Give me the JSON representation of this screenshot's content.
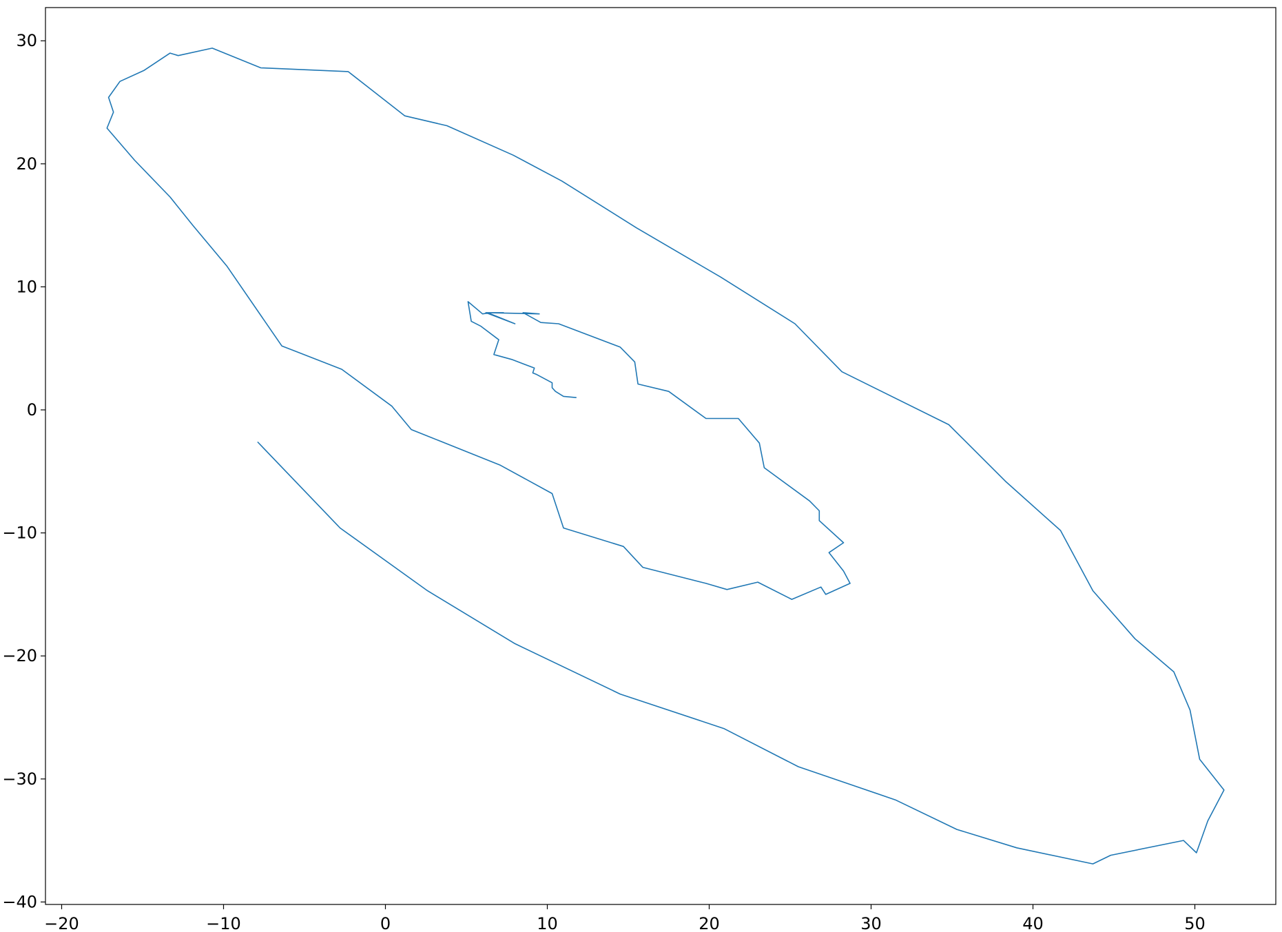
{
  "chart_data": {
    "type": "line",
    "title": "",
    "xlabel": "",
    "ylabel": "",
    "xlim": [
      -21,
      55
    ],
    "ylim": [
      -40.2,
      32.7
    ],
    "grid": false,
    "legend": "none",
    "xticks": [
      -20,
      -10,
      0,
      10,
      20,
      30,
      40,
      50
    ],
    "yticks": [
      30,
      20,
      10,
      0,
      -10,
      -20,
      -30,
      -40
    ],
    "xtick_labels": [
      "−20",
      "−10",
      "0",
      "10",
      "20",
      "30",
      "40",
      "50"
    ],
    "ytick_labels": [
      "30",
      "20",
      "10",
      "0",
      "−10",
      "−20",
      "−30",
      "−40"
    ],
    "series": [
      {
        "name": "trajectory",
        "color": "#1f77b4",
        "x": [
          11.8,
          11.0,
          10.5,
          10.3,
          10.3,
          9.3,
          9.1,
          9.2,
          7.8,
          6.7,
          7.0,
          5.9,
          5.3,
          5.1,
          6.0,
          6.5,
          7.3,
          6.2,
          8.0,
          6.3,
          9.5,
          8.5,
          9.6,
          10.7,
          14.5,
          15.4,
          15.6,
          17.5,
          19.8,
          21.8,
          23.1,
          23.4,
          26.2,
          26.8,
          26.8,
          28.3,
          27.4,
          28.3,
          28.7,
          27.2,
          26.9,
          25.1,
          23.0,
          21.1,
          19.8,
          15.9,
          14.7,
          11.0,
          10.3,
          7.1,
          1.6,
          0.4,
          -2.7,
          -6.4,
          -9.8,
          -11.9,
          -13.3,
          -15.5,
          -17.2,
          -16.8,
          -17.1,
          -16.4,
          -14.9,
          -13.3,
          -12.8,
          -10.7,
          -7.7,
          -2.3,
          1.2,
          3.8,
          7.9,
          10.9,
          15.5,
          20.7,
          25.3,
          28.2,
          34.8,
          38.3,
          41.7,
          43.7,
          46.3,
          48.7,
          49.7,
          50.3,
          51.8,
          50.8,
          50.1,
          49.3,
          44.8,
          43.7,
          39.0,
          35.3,
          31.5,
          25.5,
          20.9,
          14.5,
          8.0,
          2.6,
          -2.8,
          -7.9
        ],
        "y": [
          1.0,
          1.1,
          1.5,
          1.8,
          2.2,
          2.9,
          3.0,
          3.4,
          4.1,
          4.5,
          5.7,
          6.8,
          7.2,
          8.8,
          7.8,
          7.9,
          7.9,
          7.9,
          7.0,
          7.9,
          7.8,
          7.9,
          7.1,
          7.0,
          5.1,
          3.9,
          2.1,
          1.5,
          -0.7,
          -0.7,
          -2.7,
          -4.7,
          -7.4,
          -8.2,
          -9.0,
          -10.8,
          -11.6,
          -13.1,
          -14.1,
          -15.0,
          -14.4,
          -15.4,
          -14.0,
          -14.6,
          -14.1,
          -12.8,
          -11.1,
          -9.6,
          -6.8,
          -4.5,
          -1.6,
          0.3,
          3.3,
          5.2,
          11.7,
          15.0,
          17.3,
          20.3,
          22.9,
          24.2,
          25.4,
          26.7,
          27.6,
          29.0,
          28.8,
          29.4,
          27.8,
          27.5,
          23.9,
          23.1,
          20.7,
          18.6,
          14.8,
          10.8,
          7.0,
          3.1,
          -1.2,
          -5.8,
          -9.8,
          -14.7,
          -18.6,
          -21.3,
          -24.4,
          -28.4,
          -30.9,
          -33.4,
          -36.0,
          -35.0,
          -36.2,
          -36.9,
          -35.6,
          -34.1,
          -31.7,
          -29.0,
          -25.9,
          -23.1,
          -19.0,
          -14.7,
          -9.6,
          -2.6
        ]
      }
    ]
  }
}
